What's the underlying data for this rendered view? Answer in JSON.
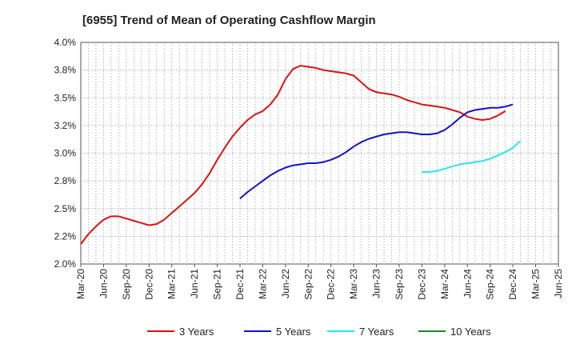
{
  "chart_data": {
    "type": "line",
    "title": "[6955]  Trend of Mean of Operating Cashflow Margin",
    "xlabel": "",
    "ylabel": "",
    "ylim": [
      2.0,
      4.0
    ],
    "y_ticks": [
      "2.0%",
      "2.2%",
      "2.5%",
      "2.8%",
      "3.0%",
      "3.2%",
      "3.5%",
      "3.8%",
      "4.0%"
    ],
    "y_tick_values": [
      2.0,
      2.25,
      2.5,
      2.75,
      3.0,
      3.25,
      3.5,
      3.75,
      4.0
    ],
    "x_ticks": [
      "Mar-20",
      "Jun-20",
      "Sep-20",
      "Dec-20",
      "Mar-21",
      "Jun-21",
      "Sep-21",
      "Dec-21",
      "Mar-22",
      "Jun-22",
      "Sep-22",
      "Dec-22",
      "Mar-23",
      "Jun-23",
      "Sep-23",
      "Dec-23",
      "Mar-24",
      "Jun-24",
      "Sep-24",
      "Dec-24",
      "Mar-25",
      "Jun-25"
    ],
    "grid": true,
    "legend_position": "bottom",
    "series": [
      {
        "name": "3 Years",
        "color": "#dd1111",
        "start_index": 0,
        "values": [
          2.18,
          2.27,
          2.34,
          2.4,
          2.43,
          2.43,
          2.41,
          2.39,
          2.37,
          2.35,
          2.36,
          2.4,
          2.46,
          2.52,
          2.58,
          2.64,
          2.72,
          2.82,
          2.94,
          3.05,
          3.15,
          3.23,
          3.3,
          3.35,
          3.38,
          3.44,
          3.53,
          3.67,
          3.76,
          3.79,
          3.78,
          3.77,
          3.75,
          3.74,
          3.73,
          3.72,
          3.7,
          3.64,
          3.58,
          3.55,
          3.54,
          3.53,
          3.51,
          3.48,
          3.46,
          3.44,
          3.43,
          3.42,
          3.41,
          3.39,
          3.37,
          3.33,
          3.31,
          3.3,
          3.31,
          3.34,
          3.38
        ]
      },
      {
        "name": "5 Years",
        "color": "#1111cc",
        "start_index": 21,
        "values": [
          2.59,
          2.65,
          2.7,
          2.75,
          2.8,
          2.84,
          2.87,
          2.89,
          2.9,
          2.91,
          2.91,
          2.92,
          2.94,
          2.97,
          3.01,
          3.06,
          3.1,
          3.13,
          3.15,
          3.17,
          3.18,
          3.19,
          3.19,
          3.18,
          3.17,
          3.17,
          3.18,
          3.21,
          3.26,
          3.32,
          3.37,
          3.39,
          3.4,
          3.41,
          3.41,
          3.42,
          3.44
        ]
      },
      {
        "name": "7 Years",
        "color": "#22e8ee",
        "start_index": 45,
        "values": [
          2.83,
          2.83,
          2.84,
          2.86,
          2.88,
          2.9,
          2.91,
          2.92,
          2.93,
          2.95,
          2.98,
          3.01,
          3.05,
          3.11
        ]
      },
      {
        "name": "10 Years",
        "color": "#228822",
        "start_index": 0,
        "values": []
      }
    ]
  }
}
